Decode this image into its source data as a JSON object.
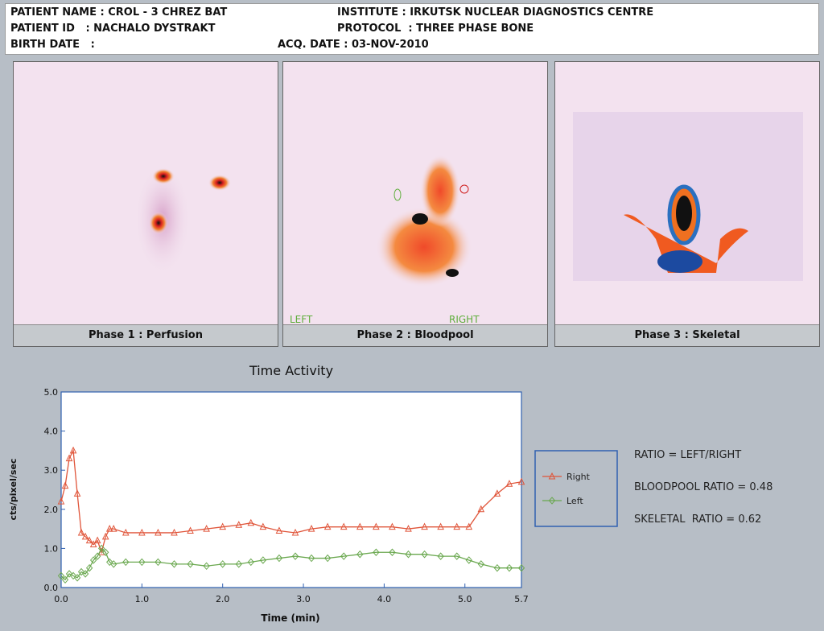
{
  "header": {
    "patient_name": "PATIENT NAME : CROL - 3 CHREZ BAT",
    "institute": "INSTITUTE : IRKUTSK NUCLEAR DIAGNOSTICS CENTRE",
    "patient_id": "PATIENT ID   : NACHALO DYSTRAKT",
    "protocol": "PROTOCOL  : THREE PHASE BONE",
    "birth_date": "BIRTH DATE   :",
    "acq_date": "ACQ. DATE : 03-NOV-2010"
  },
  "panels": [
    {
      "caption": "Phase 1 : Perfusion"
    },
    {
      "caption": "Phase 2 : Bloodpool",
      "left_label": "LEFT",
      "right_label": "RIGHT"
    },
    {
      "caption": "Phase 3 : Skeletal"
    }
  ],
  "ratios": [
    "RATIO = LEFT/RIGHT",
    "BLOODPOOL RATIO = 0.48",
    "SKELETAL  RATIO = 0.62"
  ],
  "chart_data": {
    "type": "line",
    "title": "Time Activity",
    "x_label": "Time (min)",
    "y_label": "cts/pixel/sec",
    "x": [
      0,
      0.05,
      0.1,
      0.15,
      0.2,
      0.25,
      0.3,
      0.35,
      0.4,
      0.45,
      0.5,
      0.55,
      0.6,
      0.65,
      0.8,
      1.0,
      1.2,
      1.4,
      1.6,
      1.8,
      2.0,
      2.2,
      2.35,
      2.5,
      2.7,
      2.9,
      3.1,
      3.3,
      3.5,
      3.7,
      3.9,
      4.1,
      4.3,
      4.5,
      4.7,
      4.9,
      5.05,
      5.2,
      5.4,
      5.55,
      5.7
    ],
    "series": [
      {
        "name": "Right",
        "color": "#e0553a",
        "marker": "triangle",
        "values": [
          2.2,
          2.6,
          3.3,
          3.5,
          2.4,
          1.4,
          1.3,
          1.2,
          1.1,
          1.2,
          0.9,
          1.3,
          1.5,
          1.5,
          1.4,
          1.4,
          1.4,
          1.4,
          1.45,
          1.5,
          1.55,
          1.6,
          1.65,
          1.55,
          1.45,
          1.4,
          1.5,
          1.55,
          1.55,
          1.55,
          1.55,
          1.55,
          1.5,
          1.55,
          1.55,
          1.55,
          1.55,
          2.0,
          2.4,
          2.65,
          2.7
        ]
      },
      {
        "name": "Left",
        "color": "#6aa84f",
        "marker": "diamond",
        "values": [
          0.3,
          0.2,
          0.35,
          0.3,
          0.25,
          0.4,
          0.35,
          0.5,
          0.7,
          0.8,
          1.0,
          0.9,
          0.65,
          0.6,
          0.65,
          0.65,
          0.65,
          0.6,
          0.6,
          0.55,
          0.6,
          0.6,
          0.65,
          0.7,
          0.75,
          0.8,
          0.75,
          0.75,
          0.8,
          0.85,
          0.9,
          0.9,
          0.85,
          0.85,
          0.8,
          0.8,
          0.7,
          0.6,
          0.5,
          0.5,
          0.5
        ]
      }
    ],
    "xlim": [
      0,
      5.7
    ],
    "ylim": [
      0,
      5
    ],
    "xticks": [
      {
        "value": 0,
        "label": "0.0"
      },
      {
        "value": 1,
        "label": "1.0"
      },
      {
        "value": 2,
        "label": "2.0"
      },
      {
        "value": 3,
        "label": "3.0"
      },
      {
        "value": 4,
        "label": "4.0"
      },
      {
        "value": 5,
        "label": "5.0"
      },
      5.7
    ],
    "yticks": [
      {
        "value": 0,
        "label": "0.0"
      },
      {
        "value": 1,
        "label": "1.0"
      },
      {
        "value": 2,
        "label": "2.0"
      },
      {
        "value": 3,
        "label": "3.0"
      },
      {
        "value": 4,
        "label": "4.0"
      },
      {
        "value": 5,
        "label": "5.0"
      }
    ],
    "grid": false
  }
}
